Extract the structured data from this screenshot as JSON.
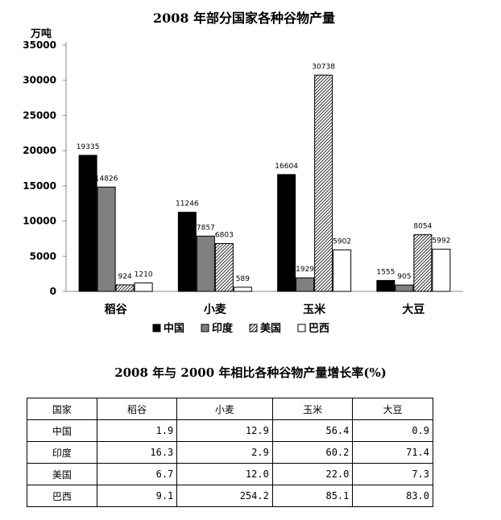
{
  "chart_data": {
    "type": "bar",
    "title": "2008 年部分国家各种谷物产量",
    "ylabel": "万吨",
    "ylim": [
      0,
      35000
    ],
    "yticks": [
      0,
      5000,
      10000,
      15000,
      20000,
      25000,
      30000,
      35000
    ],
    "categories": [
      "稻谷",
      "小麦",
      "玉米",
      "大豆"
    ],
    "legend_position": "bottom",
    "series": [
      {
        "name": "中国",
        "values": [
          19335,
          11246,
          16604,
          1555
        ],
        "fill": "#000000",
        "pattern": "solid"
      },
      {
        "name": "印度",
        "values": [
          14826,
          7857,
          1929,
          905
        ],
        "fill": "#808080",
        "pattern": "solid"
      },
      {
        "name": "美国",
        "values": [
          924,
          6803,
          30738,
          8054
        ],
        "fill": "#ffffff",
        "pattern": "hatch"
      },
      {
        "name": "巴西",
        "values": [
          1210,
          589,
          5902,
          5992
        ],
        "fill": "#ffffff",
        "pattern": "blank"
      }
    ]
  },
  "table": {
    "title": "2008 年与 2000 年相比各种谷物产量增长率(%)",
    "headers": [
      "国家",
      "稻谷",
      "小麦",
      "玉米",
      "大豆"
    ],
    "rows": [
      {
        "country": "中国",
        "values": [
          "1.9",
          "12.9",
          "56.4",
          "0.9"
        ]
      },
      {
        "country": "印度",
        "values": [
          "16.3",
          "2.9",
          "60.2",
          "71.4"
        ]
      },
      {
        "country": "美国",
        "values": [
          "6.7",
          "12.0",
          "22.0",
          "7.3"
        ]
      },
      {
        "country": "巴西",
        "values": [
          "9.1",
          "254.2",
          "85.1",
          "83.0"
        ]
      }
    ]
  }
}
